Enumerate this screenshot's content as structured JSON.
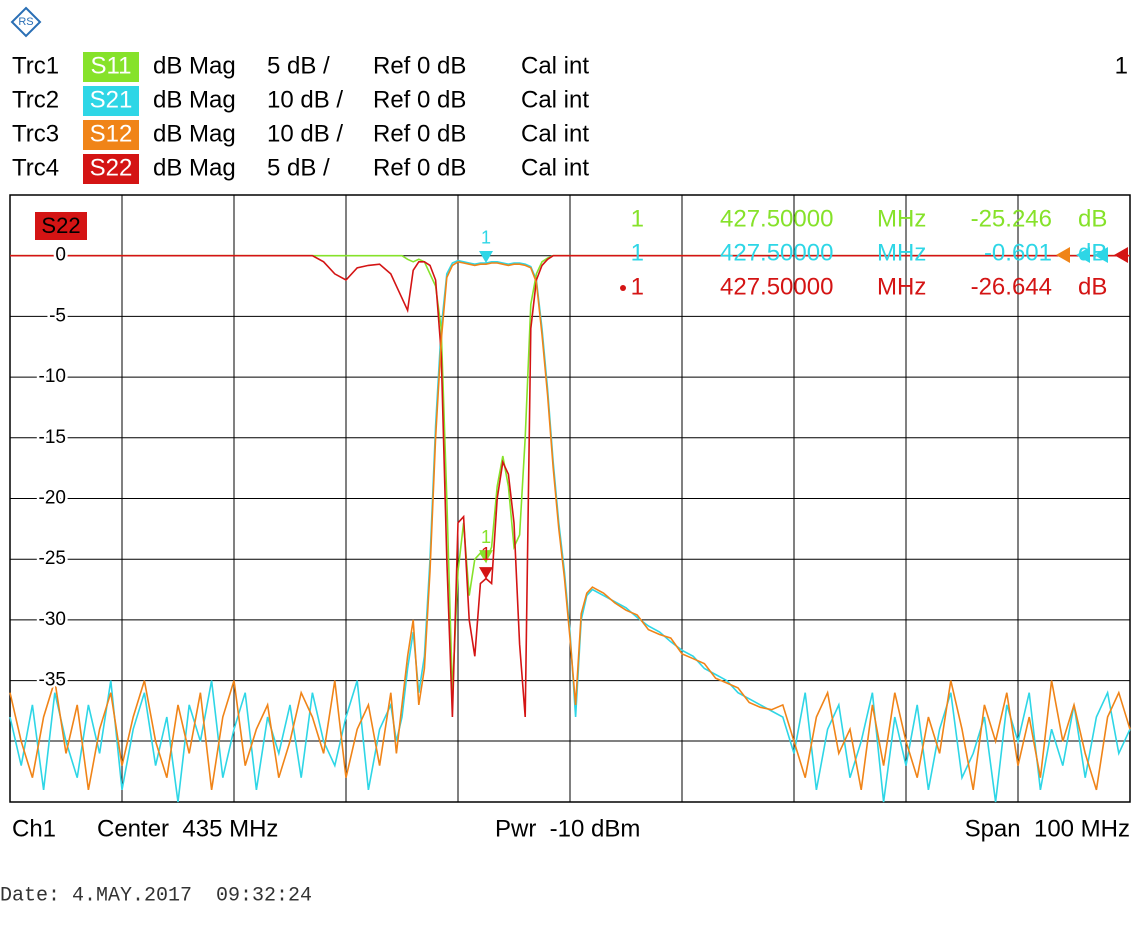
{
  "chart_data": {
    "type": "line",
    "channel_number": "1",
    "active_trace": "S22",
    "xlim": [
      385,
      485
    ],
    "ylim": [
      -45,
      5
    ],
    "yticks": [
      0,
      -5,
      -10,
      -15,
      -20,
      -25,
      -30,
      -35
    ],
    "x": [
      385,
      386,
      387,
      388,
      389,
      390,
      391,
      392,
      393,
      394,
      395,
      396,
      397,
      398,
      399,
      400,
      401,
      402,
      403,
      404,
      405,
      406,
      407,
      408,
      409,
      410,
      411,
      412,
      413,
      414,
      415,
      416,
      417,
      418,
      419,
      419.5,
      420,
      420.5,
      421,
      421.5,
      422,
      422.5,
      423,
      423.5,
      424,
      424.5,
      425,
      425.5,
      426,
      426.5,
      427,
      427.5,
      428,
      428.5,
      429,
      429.5,
      430,
      430.5,
      431,
      431.5,
      432,
      432.5,
      433,
      433.5,
      434,
      434.5,
      435,
      435.5,
      436,
      436.5,
      437,
      438,
      439,
      440,
      441,
      442,
      443,
      444,
      445,
      446,
      447,
      448,
      449,
      450,
      451,
      452,
      453,
      454,
      455,
      456,
      457,
      458,
      459,
      460,
      461,
      462,
      463,
      464,
      465,
      466,
      467,
      468,
      469,
      470,
      471,
      472,
      473,
      474,
      475,
      476,
      477,
      478,
      479,
      480,
      481,
      482,
      483,
      484,
      485
    ],
    "series": [
      {
        "trace": "Trc2",
        "name": "S21",
        "format": "dB Mag",
        "scale": "10 dB /",
        "ref": "Ref 0 dB",
        "cal": "Cal int",
        "color": "#2ed6e6",
        "values": [
          -38,
          -42,
          -37,
          -44,
          -36,
          -40,
          -43,
          -37,
          -41,
          -35,
          -44,
          -39,
          -36,
          -42,
          -38,
          -45,
          -37,
          -40,
          -35,
          -43,
          -39,
          -36,
          -44,
          -38,
          -41,
          -37,
          -43,
          -36,
          -40,
          -42,
          -38,
          -35,
          -44,
          -39,
          -37,
          -40,
          -38,
          -34,
          -31,
          -36,
          -33,
          -25,
          -14,
          -6,
          -1.5,
          -0.6,
          -0.4,
          -0.5,
          -0.6,
          -0.7,
          -0.6,
          -0.6,
          -0.5,
          -0.5,
          -0.6,
          -0.7,
          -0.6,
          -0.6,
          -0.7,
          -0.9,
          -2,
          -6,
          -11,
          -17,
          -22,
          -26,
          -31,
          -38,
          -30,
          -28,
          -27.5,
          -28,
          -28.5,
          -29,
          -29.8,
          -30.5,
          -31,
          -31.8,
          -32.5,
          -33,
          -34,
          -34.5,
          -35,
          -36,
          -36.5,
          -37,
          -37.5,
          -38,
          -41,
          -36,
          -44,
          -39,
          -37,
          -43,
          -40,
          -36,
          -45,
          -38,
          -42,
          -37,
          -44,
          -39,
          -36,
          -43,
          -41,
          -38,
          -45,
          -37,
          -40,
          -36,
          -44,
          -39,
          -42,
          -37,
          -43,
          -38,
          -36,
          -41,
          -39
        ]
      },
      {
        "trace": "Trc1",
        "name": "S11",
        "format": "dB Mag",
        "scale": "5 dB /",
        "ref": "Ref 0 dB",
        "cal": "Cal int",
        "color": "#86e22a",
        "values": [
          0,
          0,
          0,
          0,
          0,
          0,
          0,
          0,
          0,
          0,
          0,
          0,
          0,
          0,
          0,
          0,
          0,
          0,
          0,
          0,
          0,
          0,
          0,
          0,
          0,
          0,
          0,
          0,
          0,
          0,
          0,
          0,
          0,
          0,
          0,
          0,
          0,
          -0.3,
          -0.5,
          -0.3,
          -0.5,
          -1.5,
          -2.5,
          -6,
          -20,
          -36,
          -26,
          -22,
          -28,
          -25,
          -24.5,
          -25.2,
          -24,
          -19,
          -16.5,
          -19,
          -24,
          -23,
          -15,
          -4,
          -1.5,
          -0.5,
          -0.2,
          0,
          0,
          0,
          0,
          0,
          0,
          0,
          0,
          0,
          0,
          0,
          0,
          0,
          0,
          0,
          0,
          0,
          0,
          0,
          0,
          0,
          0,
          0,
          0,
          0,
          0,
          0,
          0,
          0,
          0,
          0,
          0,
          0,
          0,
          0,
          0,
          0,
          0,
          0,
          0,
          0,
          0,
          0,
          0,
          0,
          0,
          0,
          0,
          0,
          0,
          0,
          0,
          0,
          0,
          0,
          0
        ]
      },
      {
        "trace": "Trc4",
        "name": "S22",
        "format": "dB Mag",
        "scale": "5 dB /",
        "ref": "Ref 0 dB",
        "cal": "Cal int",
        "color": "#d41414",
        "values": [
          0,
          0,
          0,
          0,
          0,
          0,
          0,
          0,
          0,
          0,
          0,
          0,
          0,
          0,
          0,
          0,
          0,
          0,
          0,
          0,
          0,
          0,
          0,
          0,
          0,
          0,
          0,
          0,
          -0.5,
          -1.5,
          -2,
          -1,
          -0.8,
          -0.7,
          -1.5,
          -2.5,
          -3.5,
          -4.5,
          -1.2,
          -0.5,
          -0.5,
          -0.8,
          -2,
          -8,
          -25,
          -38,
          -22,
          -21.5,
          -30,
          -33,
          -27,
          -26.6,
          -27,
          -20,
          -17,
          -18,
          -22,
          -32,
          -38,
          -6,
          -2,
          -0.8,
          -0.3,
          0,
          0,
          0,
          0,
          0,
          0,
          0,
          0,
          0,
          0,
          0,
          0,
          0,
          0,
          0,
          0,
          0,
          0,
          0,
          0,
          0,
          0,
          0,
          0,
          0,
          0,
          0,
          0,
          0,
          0,
          0,
          0,
          0,
          0,
          0,
          0,
          0,
          0,
          0,
          0,
          0,
          0,
          0,
          0,
          0,
          0,
          0,
          0,
          0,
          0,
          0,
          0,
          0,
          0,
          0,
          0
        ]
      },
      {
        "trace": "Trc3",
        "name": "S12",
        "format": "dB Mag",
        "scale": "10 dB /",
        "ref": "Ref 0 dB",
        "cal": "Cal int",
        "color": "#f08418",
        "values": [
          -36,
          -40,
          -43,
          -38,
          -35,
          -41,
          -37,
          -44,
          -39,
          -36,
          -42,
          -38,
          -35,
          -40,
          -43,
          -37,
          -41,
          -36,
          -44,
          -38,
          -35,
          -42,
          -39,
          -37,
          -43,
          -40,
          -36,
          -38,
          -41,
          -35,
          -43,
          -39,
          -37,
          -42,
          -36,
          -41,
          -37,
          -33,
          -30,
          -37,
          -34,
          -26,
          -15,
          -7,
          -1.8,
          -0.8,
          -0.5,
          -0.6,
          -0.7,
          -0.8,
          -0.7,
          -0.7,
          -0.6,
          -0.6,
          -0.7,
          -0.8,
          -0.7,
          -0.7,
          -0.8,
          -1,
          -2.2,
          -6.5,
          -11.5,
          -17.5,
          -22.5,
          -26.5,
          -31.5,
          -37,
          -29.5,
          -27.8,
          -27.3,
          -27.8,
          -28.6,
          -29.2,
          -29.6,
          -30.8,
          -31.2,
          -31.5,
          -32.8,
          -33.2,
          -33.6,
          -34.8,
          -35.2,
          -35.6,
          -36.8,
          -37.2,
          -37.4,
          -37,
          -40,
          -43,
          -38,
          -36,
          -41,
          -39,
          -44,
          -37,
          -42,
          -36,
          -40,
          -43,
          -38,
          -41,
          -35,
          -39,
          -44,
          -37,
          -40,
          -36,
          -42,
          -38,
          -43,
          -35,
          -40,
          -37,
          -41,
          -44,
          -38,
          -36,
          -39
        ]
      }
    ],
    "header_order": [
      1,
      0,
      3,
      2
    ],
    "markers": [
      {
        "name": "1",
        "series": 1,
        "x": 427.5,
        "x_label": "427.50000",
        "x_unit": "MHz",
        "value": -25.246,
        "unit": "dB",
        "active": false
      },
      {
        "name": "1",
        "series": 0,
        "x": 427.5,
        "x_label": "427.50000",
        "x_unit": "MHz",
        "value": -0.601,
        "unit": "dB",
        "active": false
      },
      {
        "name": "1",
        "series": 2,
        "x": 427.5,
        "x_label": "427.50000",
        "x_unit": "MHz",
        "value": -26.644,
        "unit": "dB",
        "active": true
      }
    ],
    "footer": {
      "channel": "Ch1",
      "center": "Center  435 MHz",
      "power": "Pwr  -10 dBm",
      "span": "Span  100 MHz"
    },
    "date": "Date: 4.MAY.2017  09:32:24"
  }
}
